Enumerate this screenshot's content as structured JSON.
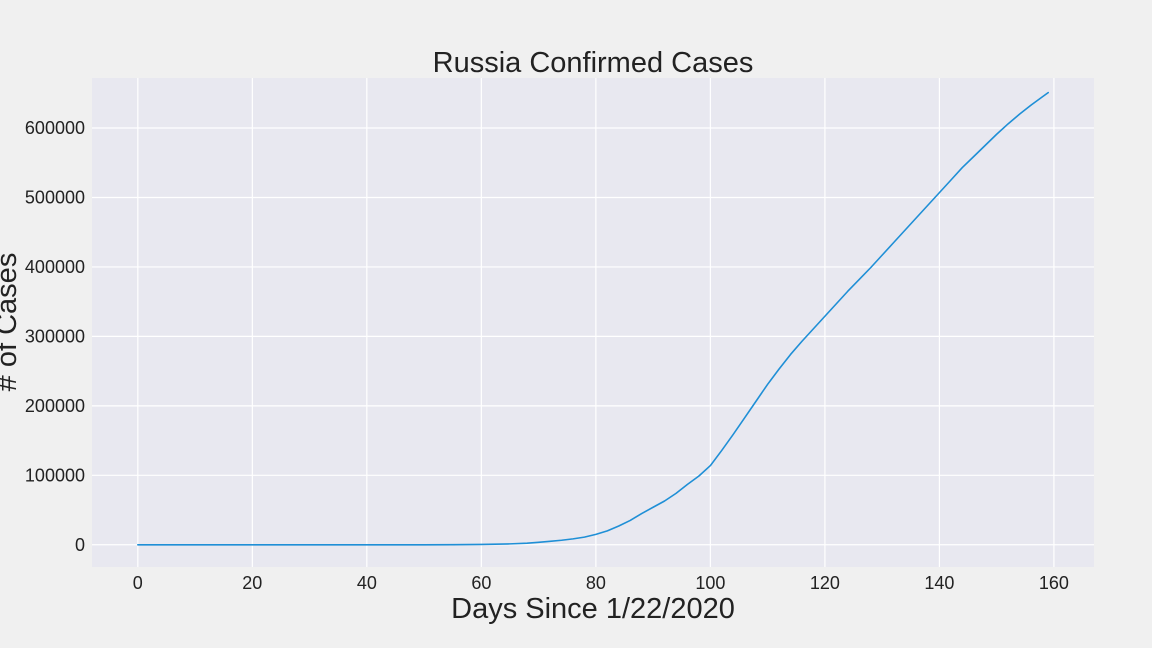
{
  "chart_data": {
    "type": "line",
    "title": "Russia Confirmed Cases",
    "xlabel": "Days Since 1/22/2020",
    "ylabel": "# of Cases",
    "xlim": [
      -8,
      167
    ],
    "ylim": [
      -32000,
      672000
    ],
    "xticks": [
      0,
      20,
      40,
      60,
      80,
      100,
      120,
      140,
      160
    ],
    "yticks": [
      0,
      100000,
      200000,
      300000,
      400000,
      500000,
      600000
    ],
    "grid": true,
    "legend": "none",
    "colors": {
      "background": "#f0f0f0",
      "plot_background": "#e8e8f0",
      "grid": "#ffffff",
      "line": "#1f8fd6",
      "text": "#222222"
    },
    "series": [
      {
        "x": [
          0,
          20,
          40,
          50,
          55,
          60,
          65,
          68,
          70,
          72,
          74,
          76,
          78,
          80,
          82,
          84,
          86,
          88,
          90,
          92,
          94,
          96,
          98,
          100,
          102,
          104,
          106,
          108,
          110,
          112,
          114,
          116,
          118,
          120,
          122,
          124,
          126,
          128,
          130,
          132,
          134,
          136,
          138,
          140,
          142,
          144,
          146,
          148,
          150,
          152,
          154,
          156,
          158,
          159
        ],
        "values": [
          0,
          0,
          0,
          0,
          100,
          500,
          1300,
          2300,
          3500,
          5000,
          6500,
          8500,
          11000,
          15000,
          20000,
          27000,
          35000,
          45000,
          54000,
          63000,
          74000,
          87000,
          99000,
          114000,
          136000,
          159000,
          183000,
          207000,
          231000,
          253000,
          274000,
          293000,
          311000,
          329000,
          347000,
          365000,
          382000,
          399000,
          417000,
          435000,
          453000,
          471000,
          489000,
          507000,
          525000,
          543000,
          559000,
          575000,
          591000,
          606000,
          620000,
          633000,
          645000,
          651000
        ]
      }
    ]
  }
}
